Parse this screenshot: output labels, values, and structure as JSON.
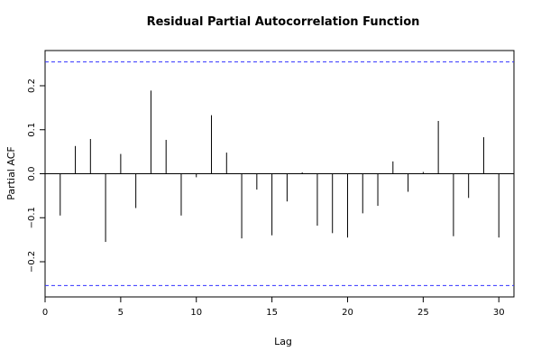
{
  "chart_data": {
    "type": "bar",
    "title": "Residual Partial Autocorrelation Function",
    "xlabel": "Lag",
    "ylabel": "Partial ACF",
    "xlim": [
      0,
      31
    ],
    "ylim": [
      -0.28,
      0.28
    ],
    "x_ticks": [
      0,
      5,
      10,
      15,
      20,
      25,
      30
    ],
    "x_tick_labels": [
      "0",
      "5",
      "10",
      "15",
      "20",
      "25",
      "30"
    ],
    "y_ticks": [
      -0.2,
      -0.1,
      0.0,
      0.1,
      0.2
    ],
    "y_tick_labels": [
      "−0.2",
      "−0.1",
      "0.0",
      "0.1",
      "0.2"
    ],
    "confidence_bound": 0.254,
    "confidence_line_color": "#3333ff",
    "x": [
      1,
      2,
      3,
      4,
      5,
      6,
      7,
      8,
      9,
      10,
      11,
      12,
      13,
      14,
      15,
      16,
      17,
      18,
      19,
      20,
      21,
      22,
      23,
      24,
      25,
      26,
      27,
      28,
      29,
      30
    ],
    "values": [
      -0.095,
      0.063,
      0.079,
      -0.155,
      0.045,
      -0.078,
      0.189,
      0.077,
      -0.095,
      -0.008,
      0.133,
      0.048,
      -0.147,
      -0.036,
      -0.14,
      -0.063,
      0.003,
      -0.118,
      -0.135,
      -0.145,
      -0.09,
      -0.073,
      0.028,
      -0.041,
      0.004,
      0.12,
      -0.142,
      -0.055,
      0.083,
      -0.145
    ],
    "grid": false
  }
}
